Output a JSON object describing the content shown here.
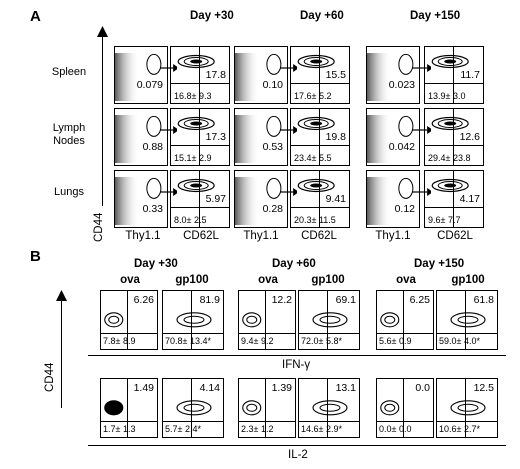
{
  "panelA": {
    "letter": "A",
    "days": [
      "Day +30",
      "Day +60",
      "Day +150"
    ],
    "rows": [
      "Spleen",
      "Lymph\nNodes",
      "Lungs"
    ],
    "yaxis": "CD44",
    "xlabels": [
      "Thy1.1",
      "CD62L"
    ],
    "thy_values": [
      [
        "0.079",
        "0.10",
        "0.023"
      ],
      [
        "0.88",
        "0.53",
        "0.042"
      ],
      [
        "0.33",
        "0.28",
        "0.12"
      ]
    ],
    "cd62l_top": [
      [
        "17.8",
        "15.5",
        "11.7"
      ],
      [
        "17.3",
        "19.8",
        "12.6"
      ],
      [
        "5.97",
        "9.41",
        "4.17"
      ]
    ],
    "cd62l_bottom": [
      [
        "16.8± 9.3",
        "17.6± 5.2",
        "13.9± 3.0"
      ],
      [
        "15.1± 2.9",
        "23.4± 5.5",
        "29.4± 23.8"
      ],
      [
        "8.0± 2.5",
        "20.3± 11.5",
        "9.6± 7.7"
      ]
    ]
  },
  "panelB": {
    "letter": "B",
    "days": [
      "Day +30",
      "Day +60",
      "Day +150"
    ],
    "col_labels": [
      "ova",
      "gp100"
    ],
    "yaxis": "CD44",
    "ifn_label": "IFN-γ",
    "il2_label": "IL-2",
    "ifn_top": [
      [
        "6.26",
        "81.9"
      ],
      [
        "12.2",
        "69.1"
      ],
      [
        "6.25",
        "61.8"
      ]
    ],
    "ifn_bottom": [
      [
        "7.8± 8.9",
        "70.8± 13.4*"
      ],
      [
        "9.4± 9.2",
        "72.0± 5.8*"
      ],
      [
        "5.6± 0.9",
        "59.0± 4.0*"
      ]
    ],
    "il2_top": [
      [
        "1.49",
        "4.14"
      ],
      [
        "1.39",
        "13.1"
      ],
      [
        "0.0",
        "12.5"
      ]
    ],
    "il2_bottom": [
      [
        "1.7± 1.3",
        "5.7± 2.4*"
      ],
      [
        "2.3± 1.2",
        "14.6± 2.9*"
      ],
      [
        "0.0± 0.0",
        "10.6± 2.7*"
      ]
    ]
  }
}
